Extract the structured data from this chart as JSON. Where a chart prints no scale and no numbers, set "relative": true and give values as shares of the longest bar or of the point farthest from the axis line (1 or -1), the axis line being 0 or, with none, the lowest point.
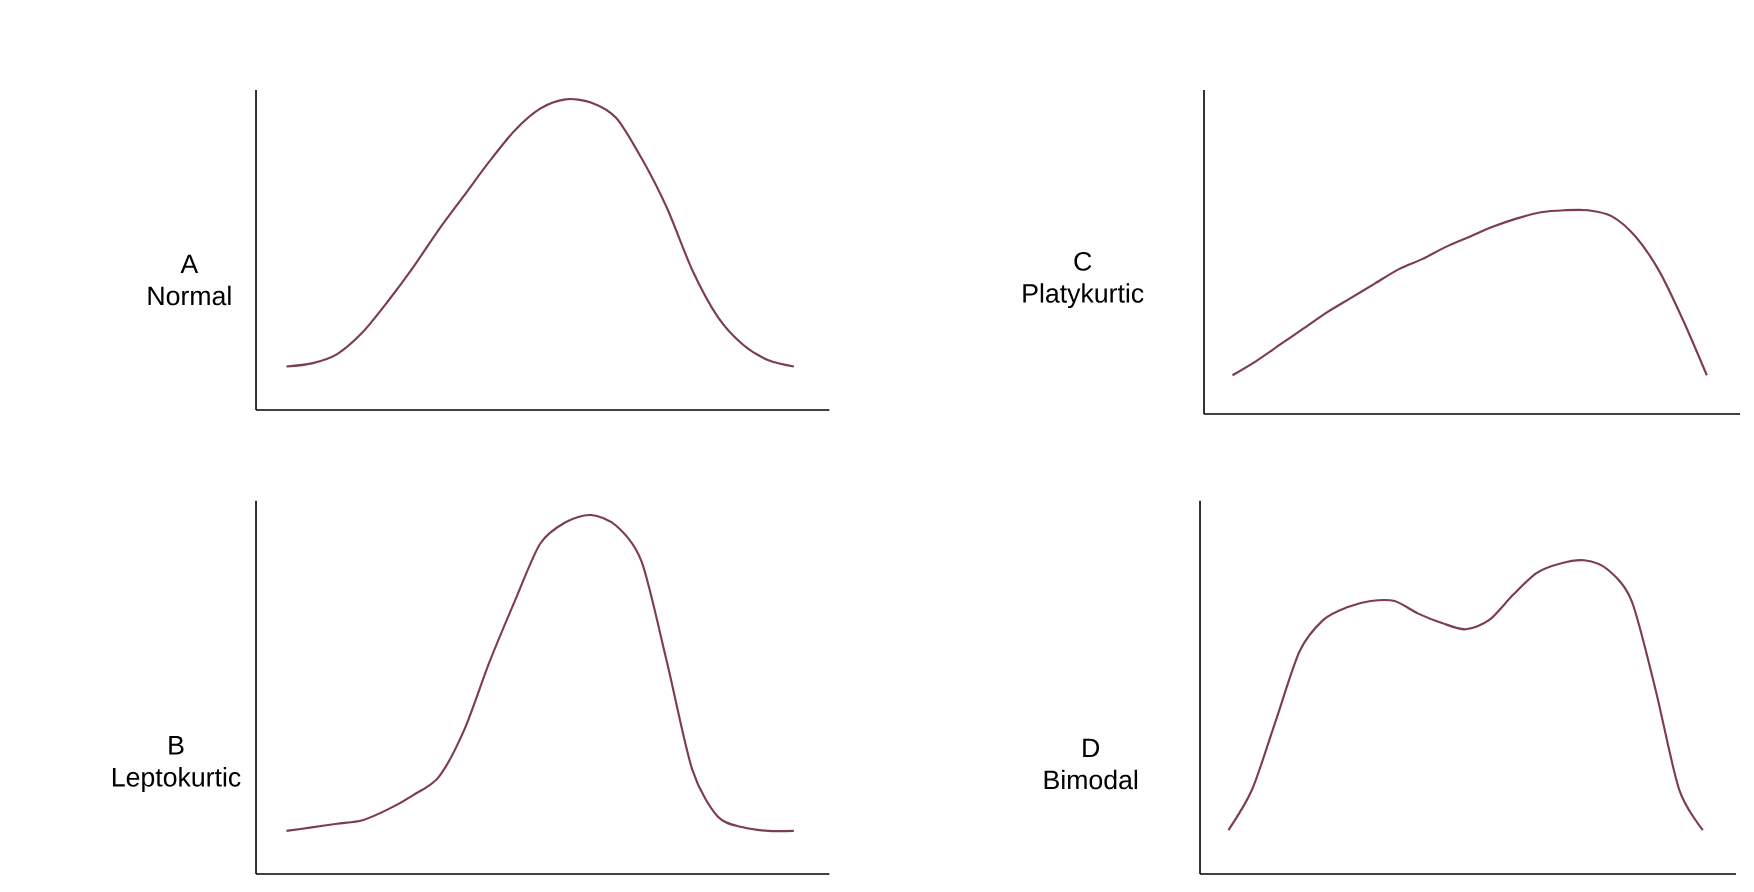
{
  "chart_data": [
    {
      "type": "line",
      "title": "A",
      "subtitle": "Normal",
      "relative": true,
      "categories": [
        null,
        null,
        null,
        null,
        null,
        null,
        null,
        null,
        null,
        null,
        null,
        null,
        null,
        null,
        null,
        null,
        null,
        null,
        null,
        null,
        null
      ],
      "series": [
        {
          "color": "#7d3b57",
          "values": [
            0.14,
            0.15,
            0.18,
            0.25,
            0.35,
            0.46,
            0.58,
            0.69,
            0.8,
            0.9,
            0.97,
            1.0,
            0.99,
            0.94,
            0.81,
            0.65,
            0.45,
            0.3,
            0.21,
            0.16,
            0.14
          ]
        }
      ]
    },
    {
      "type": "line",
      "title": "C",
      "subtitle": "Platykurtic",
      "relative": true,
      "categories": [
        null,
        null,
        null,
        null,
        null,
        null,
        null,
        null,
        null,
        null,
        null,
        null,
        null,
        null,
        null,
        null,
        null,
        null,
        null,
        null,
        null
      ],
      "series": [
        {
          "color": "#7d3b57",
          "values": [
            0.19,
            0.26,
            0.34,
            0.42,
            0.5,
            0.57,
            0.64,
            0.71,
            0.76,
            0.82,
            0.87,
            0.92,
            0.96,
            0.99,
            1.0,
            1.0,
            0.97,
            0.87,
            0.7,
            0.46,
            0.19
          ]
        }
      ]
    },
    {
      "type": "line",
      "title": "B",
      "subtitle": "Leptokurtic",
      "relative": true,
      "categories": [
        null,
        null,
        null,
        null,
        null,
        null,
        null,
        null,
        null,
        null,
        null,
        null,
        null,
        null,
        null,
        null,
        null,
        null,
        null,
        null,
        null
      ],
      "series": [
        {
          "color": "#7d3b57",
          "values": [
            0.12,
            0.13,
            0.14,
            0.15,
            0.18,
            0.22,
            0.27,
            0.4,
            0.59,
            0.76,
            0.92,
            0.98,
            1.0,
            0.97,
            0.87,
            0.59,
            0.29,
            0.16,
            0.13,
            0.12,
            0.12
          ]
        }
      ]
    },
    {
      "type": "line",
      "title": "D",
      "subtitle": "Bimodal",
      "relative": true,
      "categories": [
        null,
        null,
        null,
        null,
        null,
        null,
        null,
        null,
        null,
        null,
        null,
        null,
        null,
        null,
        null,
        null,
        null,
        null,
        null,
        null,
        null
      ],
      "series": [
        {
          "color": "#7d3b57",
          "values": [
            0.14,
            0.27,
            0.49,
            0.71,
            0.81,
            0.85,
            0.87,
            0.87,
            0.83,
            0.8,
            0.78,
            0.81,
            0.89,
            0.96,
            0.99,
            1.0,
            0.97,
            0.87,
            0.59,
            0.27,
            0.14
          ]
        }
      ]
    }
  ]
}
